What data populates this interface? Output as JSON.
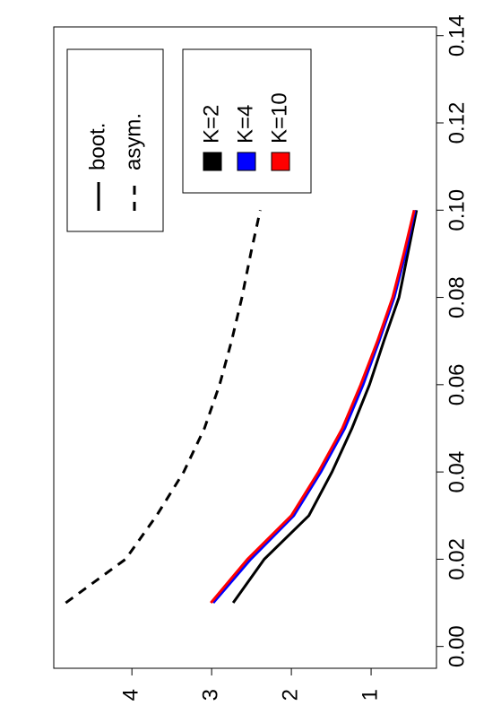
{
  "chart_data": {
    "type": "line",
    "x": [
      0.01,
      0.02,
      0.03,
      0.04,
      0.05,
      0.06,
      0.07,
      0.08,
      0.09,
      0.1
    ],
    "series": [
      {
        "name": "K=2",
        "color": "#000000",
        "dash": "solid",
        "values": [
          2.73,
          2.34,
          1.78,
          1.49,
          1.24,
          1.02,
          0.84,
          0.65,
          0.54,
          0.43
        ]
      },
      {
        "name": "K=4",
        "color": "#0000ff",
        "dash": "solid",
        "values": [
          2.98,
          2.51,
          1.97,
          1.63,
          1.33,
          1.1,
          0.9,
          0.71,
          0.57,
          0.45
        ]
      },
      {
        "name": "K=10",
        "color": "#ff0000",
        "dash": "solid",
        "values": [
          3.01,
          2.55,
          2.0,
          1.66,
          1.36,
          1.13,
          0.92,
          0.73,
          0.59,
          0.46
        ]
      },
      {
        "name": "asym.",
        "color": "#000000",
        "dash": "dashed",
        "values": [
          4.83,
          4.08,
          3.69,
          3.35,
          3.09,
          2.9,
          2.75,
          2.62,
          2.51,
          2.39
        ]
      }
    ],
    "line_legend": [
      {
        "label": "boot.",
        "dash": "solid"
      }
    ],
    "xlim": [
      -0.005,
      0.142
    ],
    "xticks": [
      {
        "value": 0,
        "label": "0.00"
      },
      0.02,
      0.04,
      0.06,
      0.08,
      {
        "value": 0.1,
        "label": "0.10"
      },
      0.12,
      0.14
    ],
    "ylim": [
      0.18,
      4.98
    ],
    "yticks": [
      1,
      2,
      3,
      4
    ],
    "rotation": -90
  }
}
